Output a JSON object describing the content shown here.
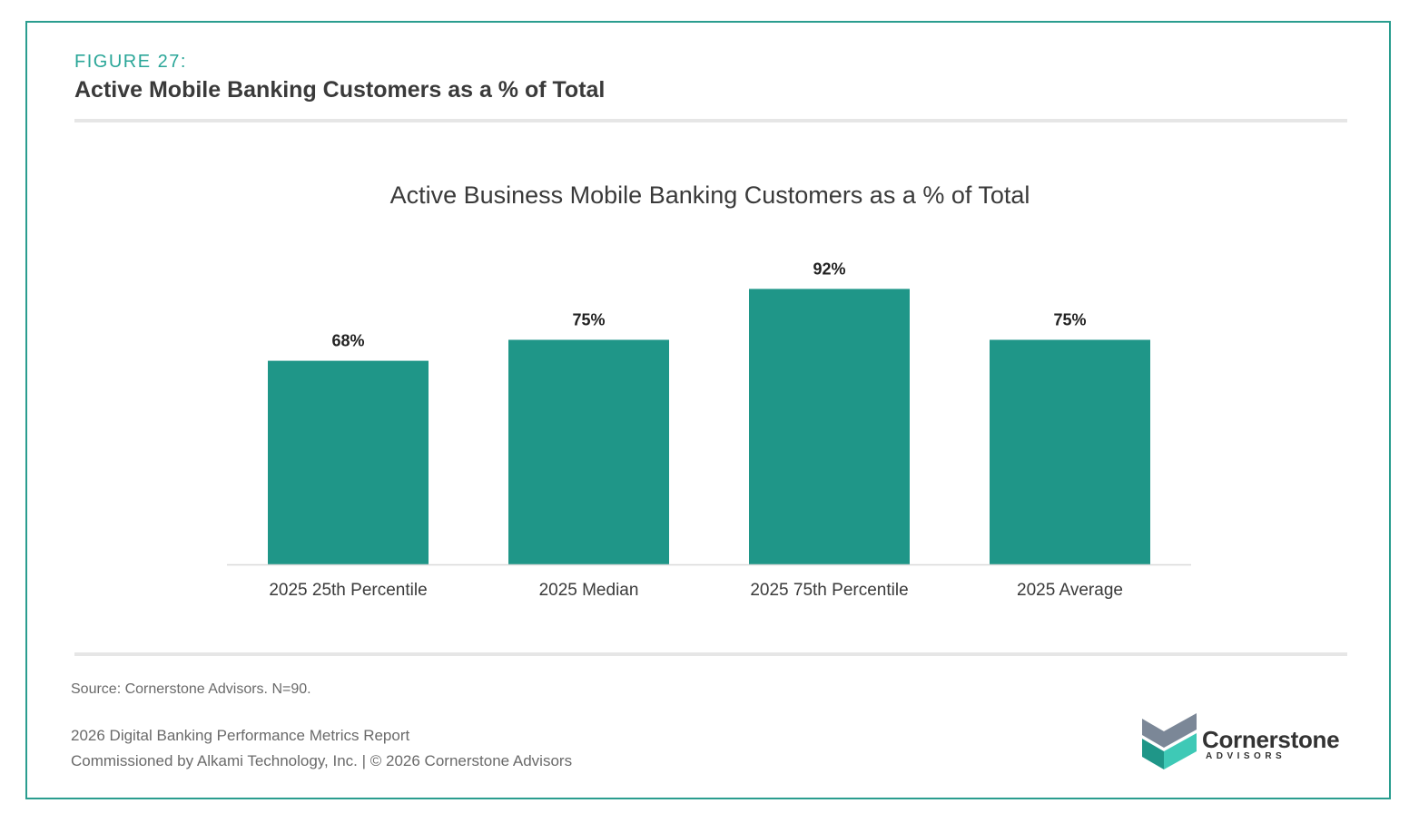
{
  "figure": {
    "label": "FIGURE 27:",
    "title": "Active Mobile Banking Customers as a % of Total"
  },
  "chart_data": {
    "type": "bar",
    "title": "Active Business Mobile Banking Customers as a % of Total",
    "categories": [
      "2025 25th Percentile",
      "2025 Median",
      "2025 75th Percentile",
      "2025 Average"
    ],
    "values": [
      68,
      75,
      92,
      75
    ],
    "value_labels": [
      "68%",
      "75%",
      "92%",
      "75%"
    ],
    "unit": "%",
    "ylim": [
      0,
      100
    ],
    "grid": false,
    "legend": "none",
    "bar_color": "#1f9688"
  },
  "footer": {
    "source": "Source: Cornerstone Advisors. N=90.",
    "report": "2026 Digital Banking Performance Metrics Report",
    "commission": "Commissioned by Alkami Technology, Inc.  |  © 2026 Cornerstone Advisors"
  },
  "logo": {
    "name": "Cornerstone",
    "sub": "ADVISORS",
    "icon": "cornerstone-cube-icon",
    "colors": {
      "top": "#7b8797",
      "left": "#1f9688",
      "right": "#3ec9b6"
    }
  },
  "colors": {
    "accent": "#2aa698",
    "border": "#2a9d8f",
    "bar": "#1f9688"
  }
}
